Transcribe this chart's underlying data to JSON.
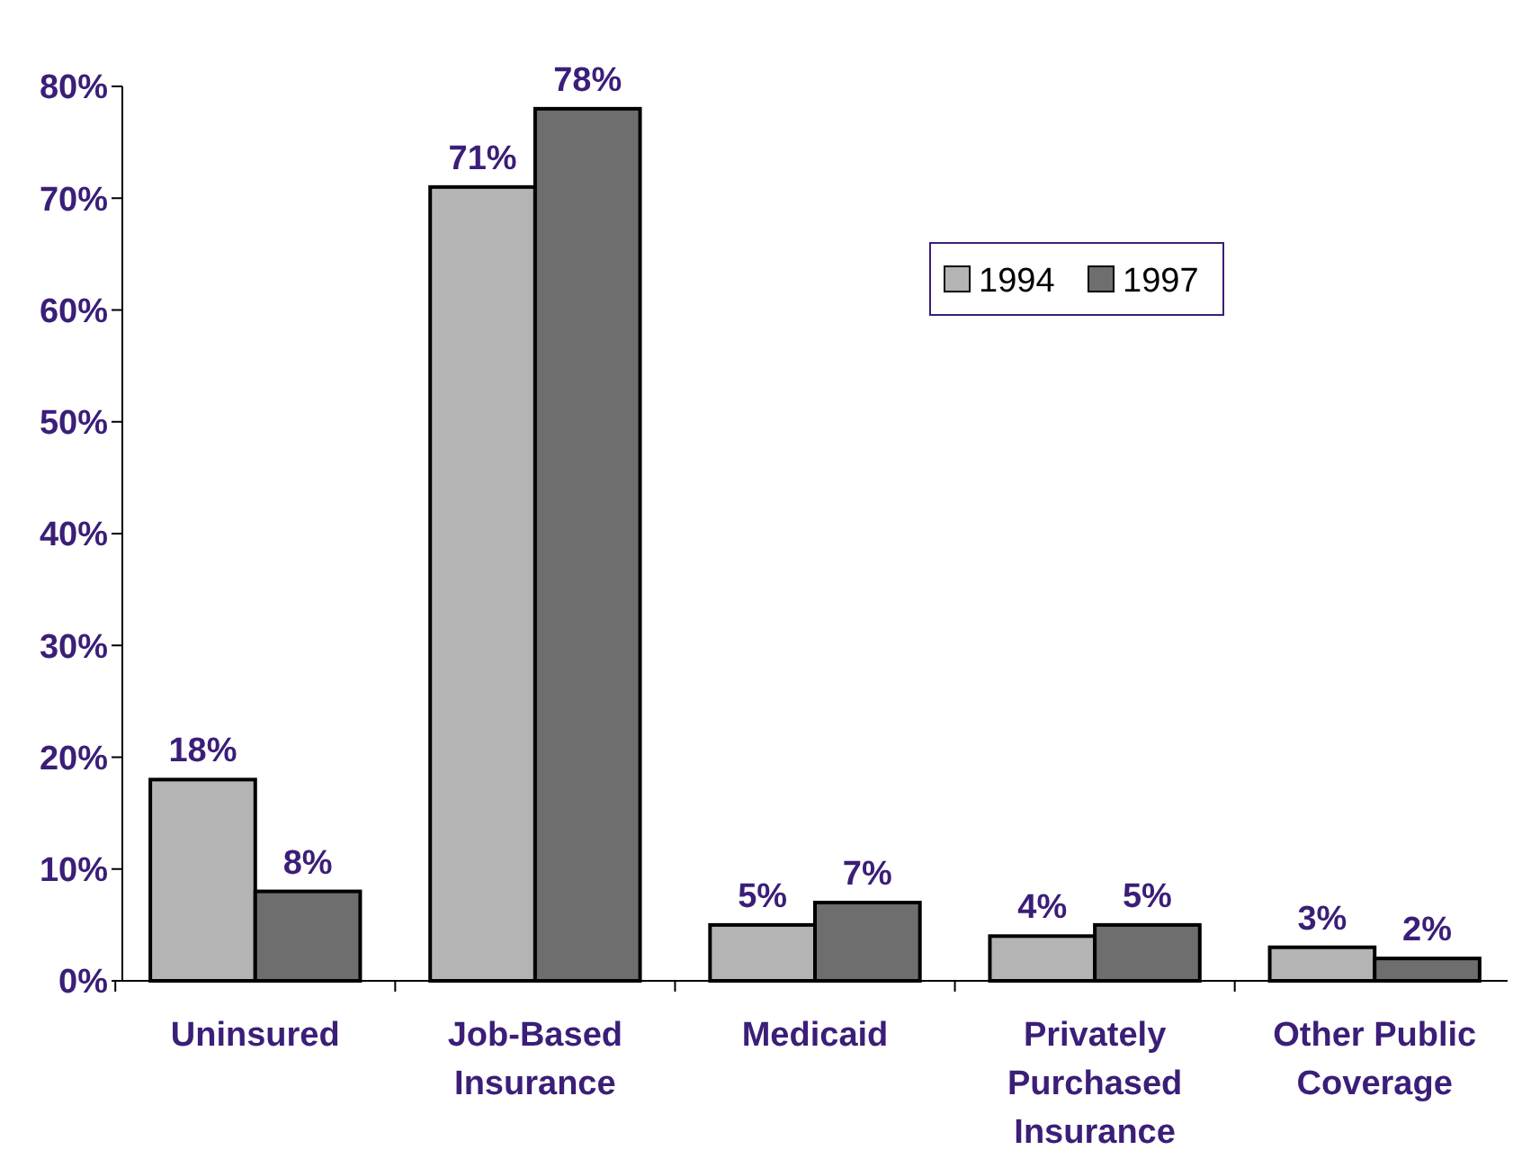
{
  "chart_data": {
    "type": "bar",
    "categories": [
      "Uninsured",
      "Job-Based Insurance",
      "Medicaid",
      "Privately Purchased Insurance",
      "Other Public Coverage"
    ],
    "series": [
      {
        "name": "1994",
        "color": "#b4b4b4",
        "values": [
          18,
          71,
          5,
          4,
          3
        ],
        "value_labels": [
          "18%",
          "71%",
          "5%",
          "4%",
          "3%"
        ]
      },
      {
        "name": "1997",
        "color": "#6e6e6e",
        "values": [
          8,
          78,
          7,
          5,
          2
        ],
        "value_labels": [
          "8%",
          "78%",
          "7%",
          "5%",
          "2%"
        ]
      }
    ],
    "ylim": [
      0,
      80
    ],
    "yticks": [
      {
        "value": 0,
        "label": "0%"
      },
      {
        "value": 10,
        "label": "10%"
      },
      {
        "value": 20,
        "label": "20%"
      },
      {
        "value": 30,
        "label": "30%"
      },
      {
        "value": 40,
        "label": "40%"
      },
      {
        "value": 50,
        "label": "50%"
      },
      {
        "value": 60,
        "label": "60%"
      },
      {
        "value": 70,
        "label": "70%"
      },
      {
        "value": 80,
        "label": "80%"
      }
    ],
    "grid": false,
    "legend": "top right"
  }
}
